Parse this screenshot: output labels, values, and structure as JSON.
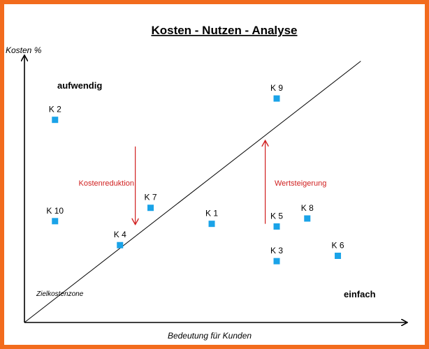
{
  "chart_data": {
    "type": "scatter",
    "title": "Kosten - Nutzen - Analyse",
    "xlabel": "Bedeutung für Kunden",
    "ylabel": "Kosten %",
    "xlim": [
      0,
      100
    ],
    "ylim": [
      0,
      100
    ],
    "grid": false,
    "marker_color": "#1aa3e8",
    "points": [
      {
        "label": "K 1",
        "x": 49,
        "y": 37
      },
      {
        "label": "K 2",
        "x": 8,
        "y": 76
      },
      {
        "label": "K 3",
        "x": 66,
        "y": 23
      },
      {
        "label": "K 4",
        "x": 25,
        "y": 29
      },
      {
        "label": "K 5",
        "x": 66,
        "y": 36
      },
      {
        "label": "K 6",
        "x": 82,
        "y": 25
      },
      {
        "label": "K 7",
        "x": 33,
        "y": 43
      },
      {
        "label": "K 8",
        "x": 74,
        "y": 39
      },
      {
        "label": "K 9",
        "x": 66,
        "y": 84
      },
      {
        "label": "K 10",
        "x": 8,
        "y": 38
      }
    ],
    "diagonal": {
      "from": [
        0,
        0
      ],
      "to": [
        88,
        98
      ]
    },
    "annotations": {
      "top_left": "aufwendig",
      "bottom_right": "einfach",
      "zone": "Zielkostenzone",
      "cost_reduction": "Kostenreduktion",
      "value_increase": "Wertsteigerung",
      "arrow_color": "#d01f1f"
    },
    "arrows": {
      "cost_reduction": {
        "x": 29,
        "from_y": 66,
        "to_y": 37
      },
      "value_increase": {
        "x": 63,
        "from_y": 37,
        "to_y": 68
      }
    }
  }
}
